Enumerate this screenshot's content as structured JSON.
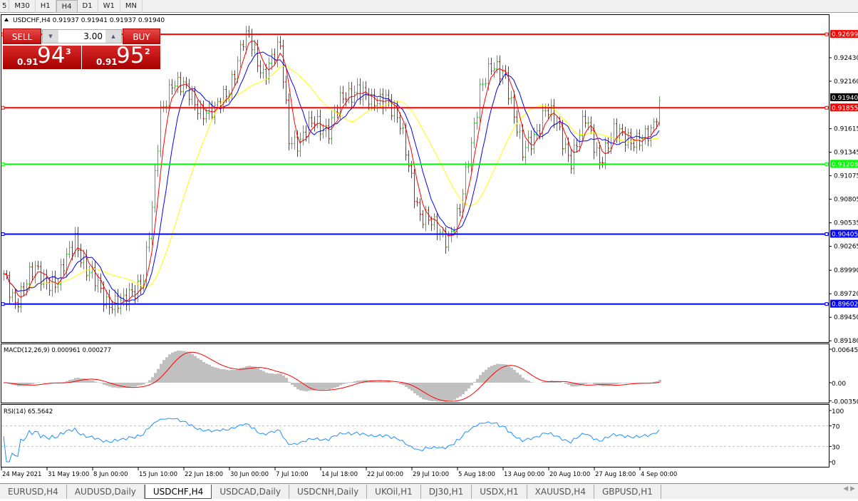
{
  "toolbar": {
    "timeframes": [
      "5",
      "M30",
      "H1",
      "H4",
      "D1",
      "W1",
      "MN"
    ],
    "active": "H4"
  },
  "chart": {
    "header": "USDCHF,H4  0.91937 0.91941 0.91937 0.91940",
    "symbol": "USDCHF",
    "timeframe": "H4"
  },
  "trade_panel": {
    "sell_label": "SELL",
    "buy_label": "BUY",
    "volume": "3.00",
    "sell_price_small": "0.91",
    "sell_price_big": "94",
    "sell_price_sup": "3",
    "buy_price_small": "0.91",
    "buy_price_big": "95",
    "buy_price_sup": "2"
  },
  "colors": {
    "bull": "#00e000",
    "bear": "#ff0000",
    "ma_fast": "#ff0000",
    "ma_mid": "#0000ff",
    "ma_slow": "#ffff00",
    "macd_hist": "#c0c0c0",
    "macd_signal": "#ff0000",
    "rsi": "#1e90ff"
  },
  "chart_data": {
    "type": "bar",
    "price_axis": {
      "ticks": [
        "0.92430",
        "0.92160",
        "0.91615",
        "0.91345",
        "0.91075",
        "0.90805",
        "0.90535",
        "0.90265",
        "0.89990",
        "0.89720",
        "0.89450",
        "0.89180"
      ],
      "range": [
        0.8918,
        0.9273
      ],
      "current": "0.91940"
    },
    "horizontal_lines": [
      {
        "price": "0.92699",
        "color": "#ff0000"
      },
      {
        "price": "0.91855",
        "color": "#ff0000"
      },
      {
        "price": "0.91208",
        "color": "#00ff00"
      },
      {
        "price": "0.90405",
        "color": "#0000ff"
      },
      {
        "price": "0.89602",
        "color": "#0000ff"
      }
    ],
    "time_labels": [
      "24 May 2021",
      "31 May 19:00",
      "8 Jun 00:00",
      "15 Jun 10:00",
      "22 Jun 18:00",
      "30 Jun 00:00",
      "7 Jul 10:00",
      "14 Jul 18:00",
      "22 Jul 00:00",
      "29 Jul 10:00",
      "5 Aug 18:00",
      "13 Aug 00:00",
      "20 Aug 10:00",
      "27 Aug 18:00",
      "4 Sep 00:00"
    ],
    "approx_close_path": [
      [
        0,
        0.899
      ],
      [
        4,
        0.8966
      ],
      [
        11,
        0.8998
      ],
      [
        19,
        0.8982
      ],
      [
        25,
        0.9039
      ],
      [
        29,
        0.8998
      ],
      [
        36,
        0.8966
      ],
      [
        42,
        0.8958
      ],
      [
        49,
        0.8994
      ],
      [
        52,
        0.9064
      ],
      [
        55,
        0.9178
      ],
      [
        59,
        0.9219
      ],
      [
        64,
        0.9203
      ],
      [
        69,
        0.9186
      ],
      [
        74,
        0.9178
      ],
      [
        79,
        0.9211
      ],
      [
        84,
        0.926
      ],
      [
        86,
        0.9264
      ],
      [
        91,
        0.9227
      ],
      [
        97,
        0.9252
      ],
      [
        100,
        0.9154
      ],
      [
        104,
        0.9146
      ],
      [
        109,
        0.917
      ],
      [
        114,
        0.9162
      ],
      [
        119,
        0.9195
      ],
      [
        124,
        0.9211
      ],
      [
        129,
        0.9186
      ],
      [
        134,
        0.9203
      ],
      [
        139,
        0.9162
      ],
      [
        142,
        0.9121
      ],
      [
        146,
        0.9064
      ],
      [
        151,
        0.9047
      ],
      [
        156,
        0.9039
      ],
      [
        160,
        0.9064
      ],
      [
        164,
        0.9146
      ],
      [
        167,
        0.9211
      ],
      [
        171,
        0.9227
      ],
      [
        176,
        0.9227
      ],
      [
        179,
        0.9178
      ],
      [
        182,
        0.9129
      ],
      [
        186,
        0.9154
      ],
      [
        190,
        0.9186
      ],
      [
        194,
        0.9162
      ],
      [
        199,
        0.9129
      ],
      [
        204,
        0.917
      ],
      [
        209,
        0.9129
      ],
      [
        214,
        0.9154
      ],
      [
        219,
        0.9154
      ],
      [
        224,
        0.9146
      ],
      [
        227,
        0.9154
      ],
      [
        230,
        0.9194
      ]
    ],
    "macd": {
      "label": "MACD(12,26,9) 0.000961 0.000277",
      "ticks": [
        "0.006451",
        "0.00",
        "-0.00350"
      ]
    },
    "rsi": {
      "label": "RSI(14) 65.5642",
      "ticks": [
        "100",
        "70",
        "30",
        "0"
      ],
      "levels": [
        70,
        30
      ]
    }
  },
  "tabs": [
    "EURUSD,H4",
    "AUDUSD,Daily",
    "USDCHF,H4",
    "USDCAD,Daily",
    "USDCNH,Daily",
    "UKOil,H1",
    "DJ30,H1",
    "USDX,H1",
    "XAUUSD,H4",
    "GBPUSD,H1"
  ],
  "active_tab": "USDCHF,H4"
}
